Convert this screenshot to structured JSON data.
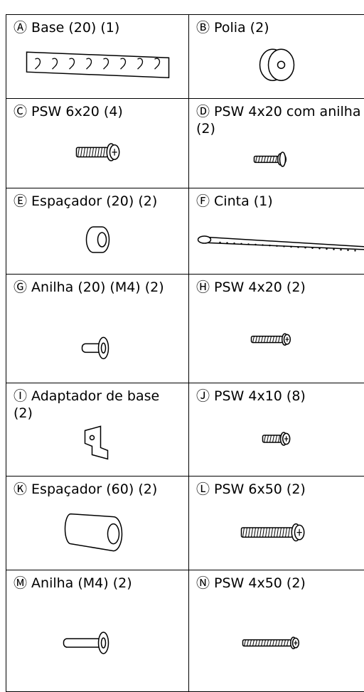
{
  "table": {
    "rows": [
      [
        "Ⓐ Base (20) (1)",
        "Ⓑ Polia (2)"
      ],
      [
        "Ⓒ PSW 6x20 (4)",
        "Ⓓ PSW 4x20 com anilha (2)"
      ],
      [
        "Ⓔ Espaçador (20) (2)",
        "Ⓕ Cinta (1)"
      ],
      [
        "Ⓖ Anilha (20) (M4) (2)",
        "Ⓗ PSW 4x20 (2)"
      ],
      [
        "Ⓘ Adaptador de base (2)",
        "Ⓙ PSW 4x10 (8)"
      ],
      [
        "Ⓚ Espaçador (60) (2)",
        "Ⓛ PSW 6x50 (2)"
      ],
      [
        "Ⓜ Anilha (M4) (2)",
        "Ⓝ PSW 4x50 (2)"
      ]
    ]
  }
}
